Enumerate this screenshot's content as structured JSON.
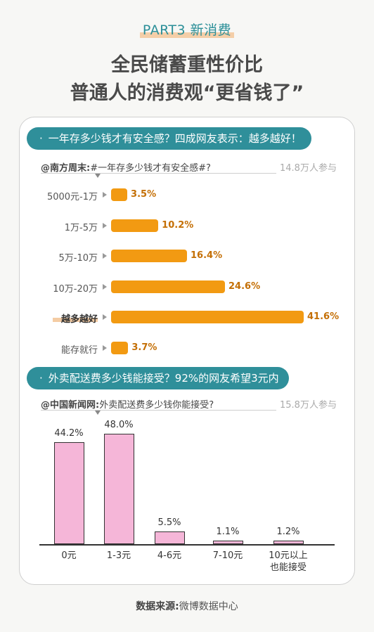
{
  "header": {
    "part": "PART3 新消费",
    "title_line1": "全民储蓄重性价比",
    "title_line2": "普通人的消费观“更省钱了”"
  },
  "section1": {
    "pill": "一年存多少钱才有安全感？四成网友表示：越多越好！",
    "source_name": "@南方周末:",
    "source_topic": "#一年存多少钱才有安全感#?",
    "participants": "14.8万人参与"
  },
  "section2": {
    "pill": "外卖配送费多少钱能接受？92%的网友希望3元内",
    "source_name": "@中国新闻网:",
    "source_topic": "外卖配送费多少钱你能接受?",
    "participants": "15.8万人参与"
  },
  "chart_data": [
    {
      "type": "bar",
      "orientation": "horizontal",
      "categories": [
        "5000元-1万",
        "1万-5万",
        "5万-10万",
        "10万-20万",
        "越多越好",
        "能存就行"
      ],
      "values": [
        3.5,
        10.2,
        16.4,
        24.6,
        41.6,
        3.7
      ],
      "value_labels": [
        "3.5%",
        "10.2%",
        "16.4%",
        "24.6%",
        "41.6%",
        "3.7%"
      ],
      "emphasized_category": "越多越好",
      "bar_color": "#f29a12",
      "title": "",
      "xlabel": "",
      "ylabel": ""
    },
    {
      "type": "bar",
      "orientation": "vertical",
      "categories": [
        "0元",
        "1-3元",
        "4-6元",
        "7-10元",
        "10元以上也能接受"
      ],
      "category_lines": [
        [
          "0元"
        ],
        [
          "1-3元"
        ],
        [
          "4-6元"
        ],
        [
          "7-10元"
        ],
        [
          "10元以上",
          "也能接受"
        ]
      ],
      "values": [
        44.2,
        48.0,
        5.5,
        1.1,
        1.2
      ],
      "value_labels": [
        "44.2%",
        "48.0%",
        "5.5%",
        "1.1%",
        "1.2%"
      ],
      "bar_color": "#f5b6d8",
      "title": "",
      "xlabel": "",
      "ylabel": ""
    }
  ],
  "footer": {
    "label": "数据来源:",
    "source": "微博数据中心"
  }
}
